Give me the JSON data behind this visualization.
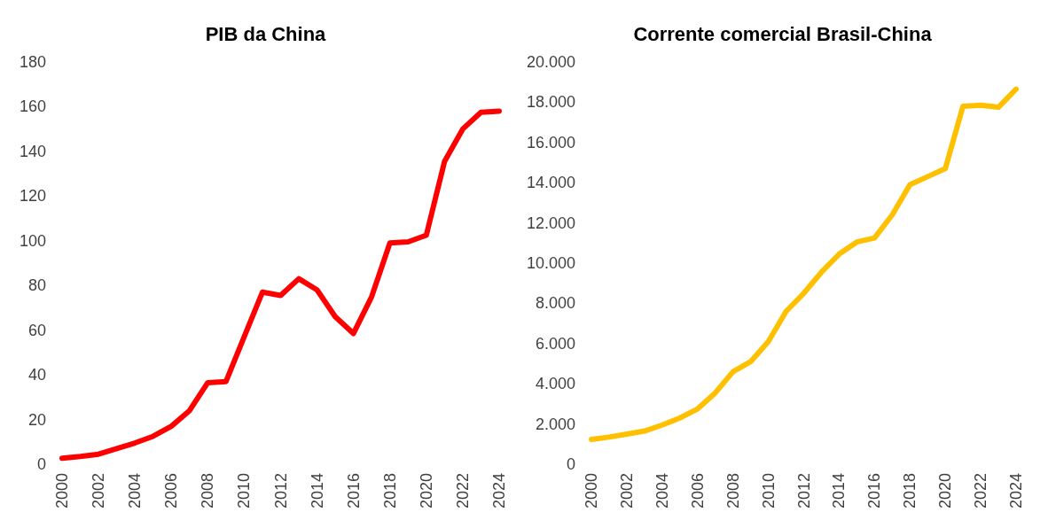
{
  "chart_data": [
    {
      "type": "line",
      "title": "PIB da China",
      "categories": [
        "2000",
        null,
        "2002",
        null,
        "2004",
        null,
        "2006",
        null,
        "2008",
        null,
        "2010",
        null,
        "2012",
        null,
        "2014",
        null,
        "2016",
        null,
        "2018",
        null,
        "2020",
        null,
        "2022",
        null,
        "2024"
      ],
      "series": [
        {
          "color": "#ff0000",
          "values": [
            2.7,
            3.5,
            4.5,
            7,
            9.5,
            12.5,
            17,
            24,
            36.5,
            37,
            57,
            77,
            75.5,
            83,
            78,
            66,
            58.5,
            75,
            99,
            99.5,
            102.5,
            135.5,
            150,
            157.5,
            158
          ]
        }
      ],
      "ylim": [
        0,
        180
      ],
      "yticks": [
        0,
        20,
        40,
        60,
        80,
        100,
        120,
        140,
        160,
        180
      ],
      "grid": false,
      "marker": "none",
      "line_style": "solid"
    },
    {
      "type": "line",
      "title": "Corrente comercial Brasil-China",
      "categories": [
        "2000",
        null,
        "2002",
        null,
        "2004",
        null,
        "2006",
        null,
        "2008",
        null,
        "2010",
        null,
        "2012",
        null,
        "2014",
        null,
        "2016",
        null,
        "2018",
        null,
        "2020",
        null,
        "2022",
        null,
        "2024"
      ],
      "series": [
        {
          "color": "#ffc000",
          "values": [
            1230,
            1350,
            1500,
            1650,
            1950,
            2300,
            2750,
            3550,
            4600,
            5100,
            6100,
            7600,
            8500,
            9550,
            10450,
            11050,
            11250,
            12400,
            13900,
            14300,
            14700,
            17800,
            17850,
            17750,
            18650
          ]
        }
      ],
      "ylim": [
        0,
        20000
      ],
      "yticks": [
        0,
        {
          "value": 2000,
          "label": "2.000"
        },
        {
          "value": 4000,
          "label": "4.000"
        },
        {
          "value": 6000,
          "label": "6.000"
        },
        {
          "value": 8000,
          "label": "8.000"
        },
        {
          "value": 10000,
          "label": "10.000"
        },
        {
          "value": 12000,
          "label": "12.000"
        },
        {
          "value": 14000,
          "label": "14.000"
        },
        {
          "value": 16000,
          "label": "16.000"
        },
        {
          "value": 18000,
          "label": "18.000"
        },
        {
          "value": 20000,
          "label": "20.000"
        }
      ],
      "grid": false,
      "marker": "none",
      "line_style": "solid"
    }
  ]
}
